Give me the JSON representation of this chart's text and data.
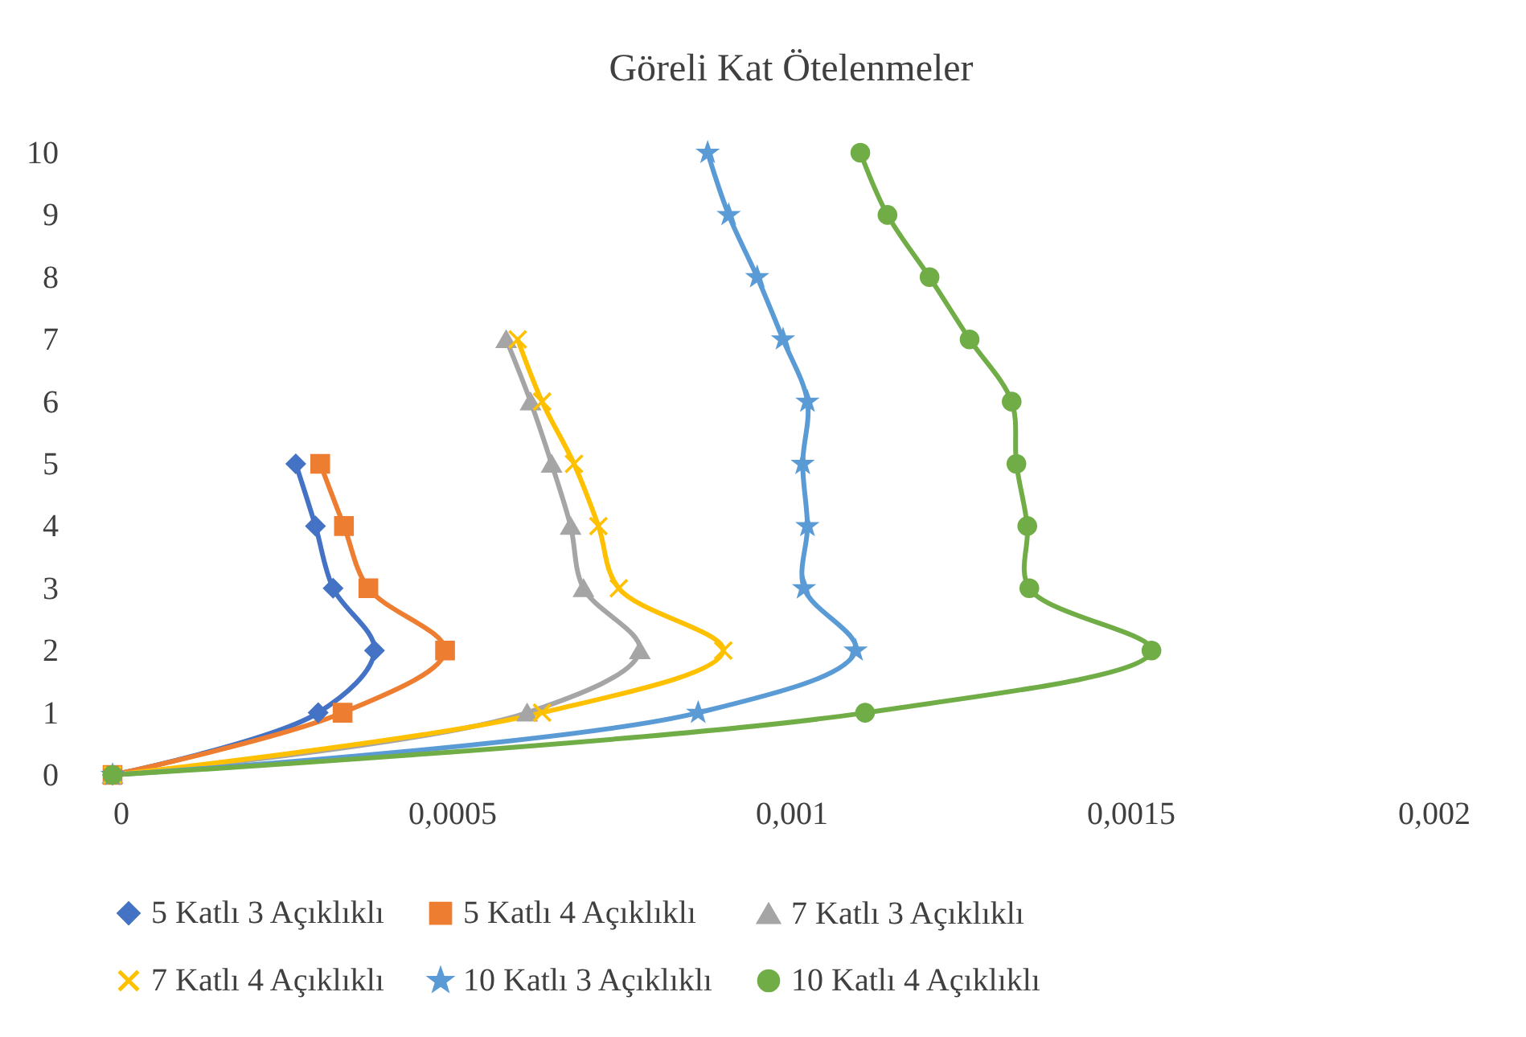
{
  "chart_data": {
    "type": "line",
    "title": "Göreli Kat Ötelenmeler",
    "xlim": [
      0,
      0.002
    ],
    "xticks": [
      0,
      {
        "value": 0.0005,
        "label": "0,0005"
      },
      {
        "value": 0.001,
        "label": "0,001"
      },
      {
        "value": 0.0015,
        "label": "0,0015"
      },
      {
        "value": 0.002,
        "label": "0,002"
      }
    ],
    "ylim": [
      0,
      10
    ],
    "yticks": [
      0,
      1,
      2,
      3,
      4,
      5,
      6,
      7,
      8,
      9,
      10
    ],
    "legend": "bottom",
    "series": [
      {
        "name": "5 Katlı 3 Açıklıklı",
        "color": "#4472c4",
        "marker": "diamond",
        "x": [
          0,
          0.000303,
          0.000386,
          0.000325,
          0.000299,
          0.00027
        ],
        "values": [
          0,
          1,
          2,
          3,
          4,
          5
        ]
      },
      {
        "name": "5 Katlı 4 Açıklıklı",
        "color": "#ed7d31",
        "marker": "square",
        "x": [
          0,
          0.000339,
          0.00049,
          0.000377,
          0.000341,
          0.000306
        ],
        "values": [
          0,
          1,
          2,
          3,
          4,
          5
        ]
      },
      {
        "name": "7 Katlı 3 Açıklıklı",
        "color": "#a5a5a5",
        "marker": "triangle",
        "x": [
          0,
          0.000611,
          0.000777,
          0.000694,
          0.000675,
          0.000647,
          0.000616,
          0.00058
        ],
        "values": [
          0,
          1,
          2,
          3,
          4,
          5,
          6,
          7
        ]
      },
      {
        "name": "7 Katlı 4 Açıklıklı",
        "color": "#ffc000",
        "marker": "cross",
        "x": [
          0,
          0.000633,
          0.0009,
          0.000746,
          0.000716,
          0.00068,
          0.000633,
          0.000597
        ],
        "values": [
          0,
          1,
          2,
          3,
          4,
          5,
          6,
          7
        ]
      },
      {
        "name": "10 Katlı 3 Açıklıklı",
        "color": "#5b9bd5",
        "marker": "star",
        "x": [
          0,
          0.000863,
          0.001095,
          0.001019,
          0.001024,
          0.001017,
          0.001024,
          0.000988,
          0.00095,
          0.000908,
          0.000877
        ],
        "values": [
          0,
          1,
          2,
          3,
          4,
          5,
          6,
          7,
          8,
          9,
          10
        ]
      },
      {
        "name": "10 Katlı 4 Açıklıklı",
        "color": "#70ad47",
        "marker": "circle",
        "x": [
          0,
          0.001109,
          0.001531,
          0.001351,
          0.001348,
          0.001332,
          0.001325,
          0.001263,
          0.001204,
          0.001142,
          0.001102
        ],
        "values": [
          0,
          1,
          2,
          3,
          4,
          5,
          6,
          7,
          8,
          9,
          10
        ]
      }
    ]
  }
}
